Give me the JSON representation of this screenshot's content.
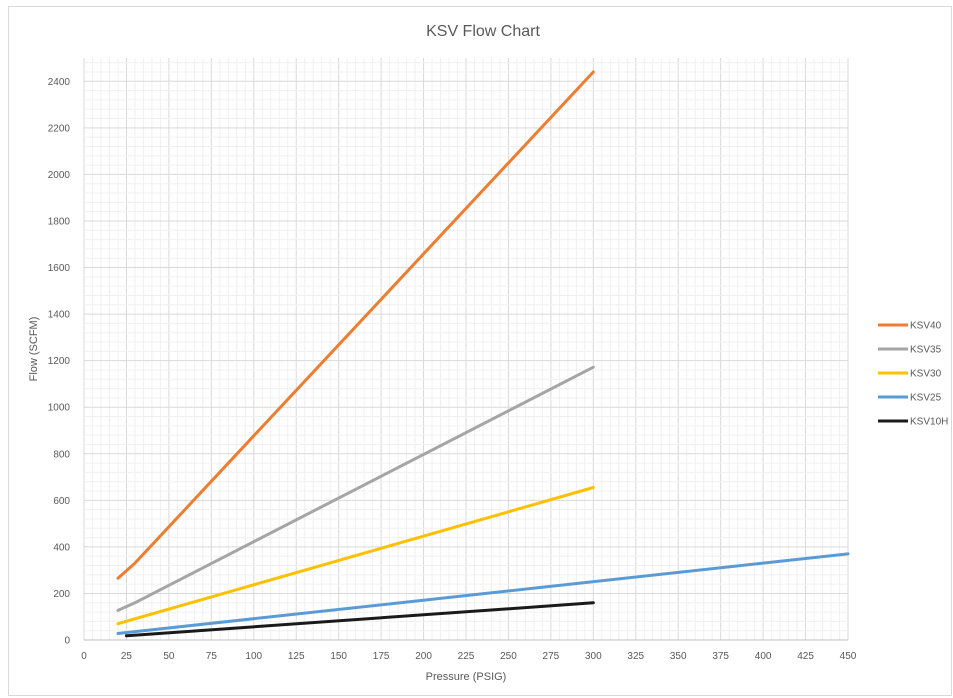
{
  "chart_data": {
    "type": "line",
    "title": "KSV Flow Chart",
    "xlabel": "Pressure (PSIG)",
    "ylabel": "Flow (SCFM)",
    "xlim": [
      0,
      450
    ],
    "ylim": [
      0,
      2400
    ],
    "xticks": [
      0,
      25,
      50,
      75,
      100,
      125,
      150,
      175,
      200,
      225,
      250,
      275,
      300,
      325,
      350,
      375,
      400,
      425,
      450
    ],
    "yticks": [
      0,
      200,
      400,
      600,
      800,
      1000,
      1200,
      1400,
      1600,
      1800,
      2000,
      2200,
      2400
    ],
    "grid": true,
    "legend_position": "right",
    "series": [
      {
        "name": "KSV40",
        "color": "#ED7D31",
        "points": [
          [
            20,
            265
          ],
          [
            30,
            330
          ],
          [
            300,
            2440
          ]
        ]
      },
      {
        "name": "KSV35",
        "color": "#A5A5A5",
        "points": [
          [
            20,
            127
          ],
          [
            30,
            160
          ],
          [
            300,
            1172
          ]
        ]
      },
      {
        "name": "KSV30",
        "color": "#FFC000",
        "points": [
          [
            20,
            70
          ],
          [
            300,
            655
          ]
        ]
      },
      {
        "name": "KSV25",
        "color": "#5B9BD5",
        "points": [
          [
            20,
            28
          ],
          [
            450,
            370
          ]
        ]
      },
      {
        "name": "KSV10H",
        "color": "#1A1A1A",
        "points": [
          [
            25,
            18
          ],
          [
            300,
            160
          ]
        ]
      }
    ]
  }
}
